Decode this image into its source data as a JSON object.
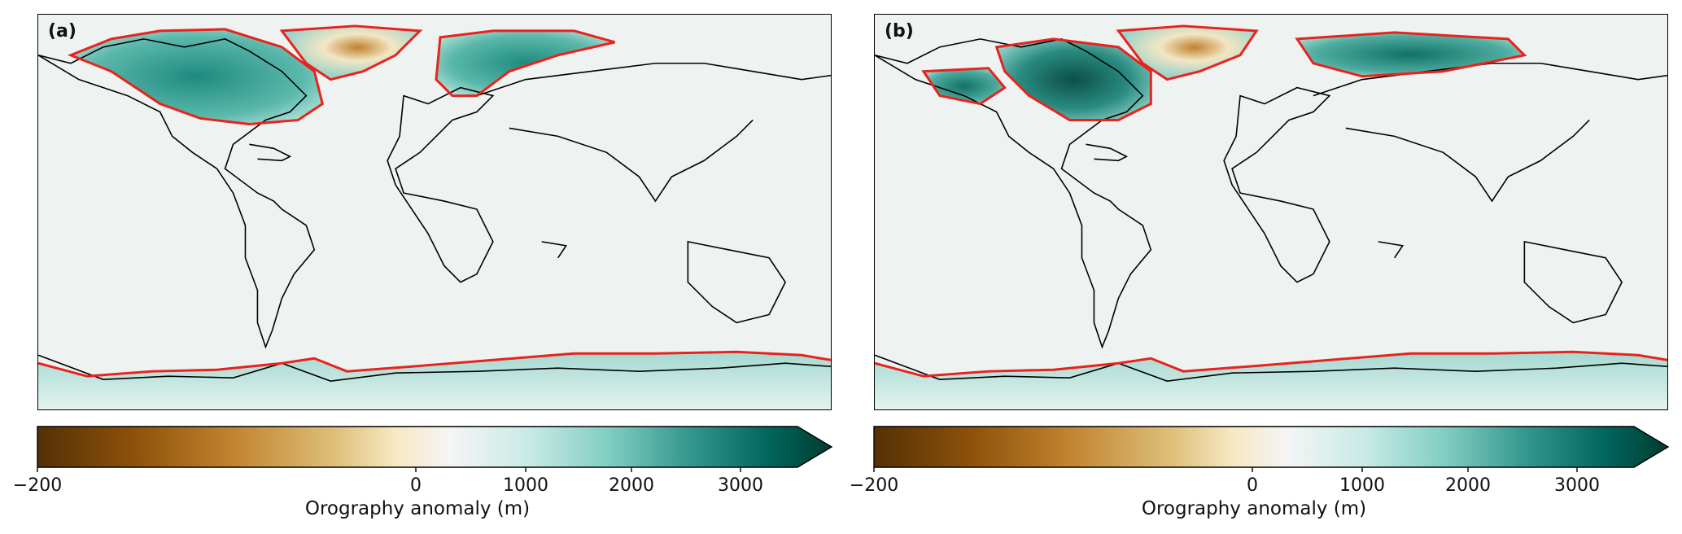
{
  "panels": [
    {
      "label": "(a)",
      "colorbar": {
        "label": "Orography anomaly (m)",
        "ticks": [
          "−200",
          "0",
          "1000",
          "2000",
          "3000"
        ]
      }
    },
    {
      "label": "(b)",
      "colorbar": {
        "label": "Orography anomaly (m)",
        "ticks": [
          "−200",
          "0",
          "1000",
          "2000",
          "3000"
        ]
      }
    }
  ],
  "colormap": {
    "name": "BrBG",
    "range": [
      -200,
      3000
    ],
    "extend": "max",
    "colors": [
      "#543005",
      "#8c510a",
      "#bf812d",
      "#dfc27d",
      "#f6e8c3",
      "#f5f5f5",
      "#c7eae5",
      "#80cdc1",
      "#35978f",
      "#01665e",
      "#003c30"
    ]
  },
  "overlay": {
    "ice_sheet_outline_color": "#e8231d",
    "coastline_color": "#000000"
  }
}
